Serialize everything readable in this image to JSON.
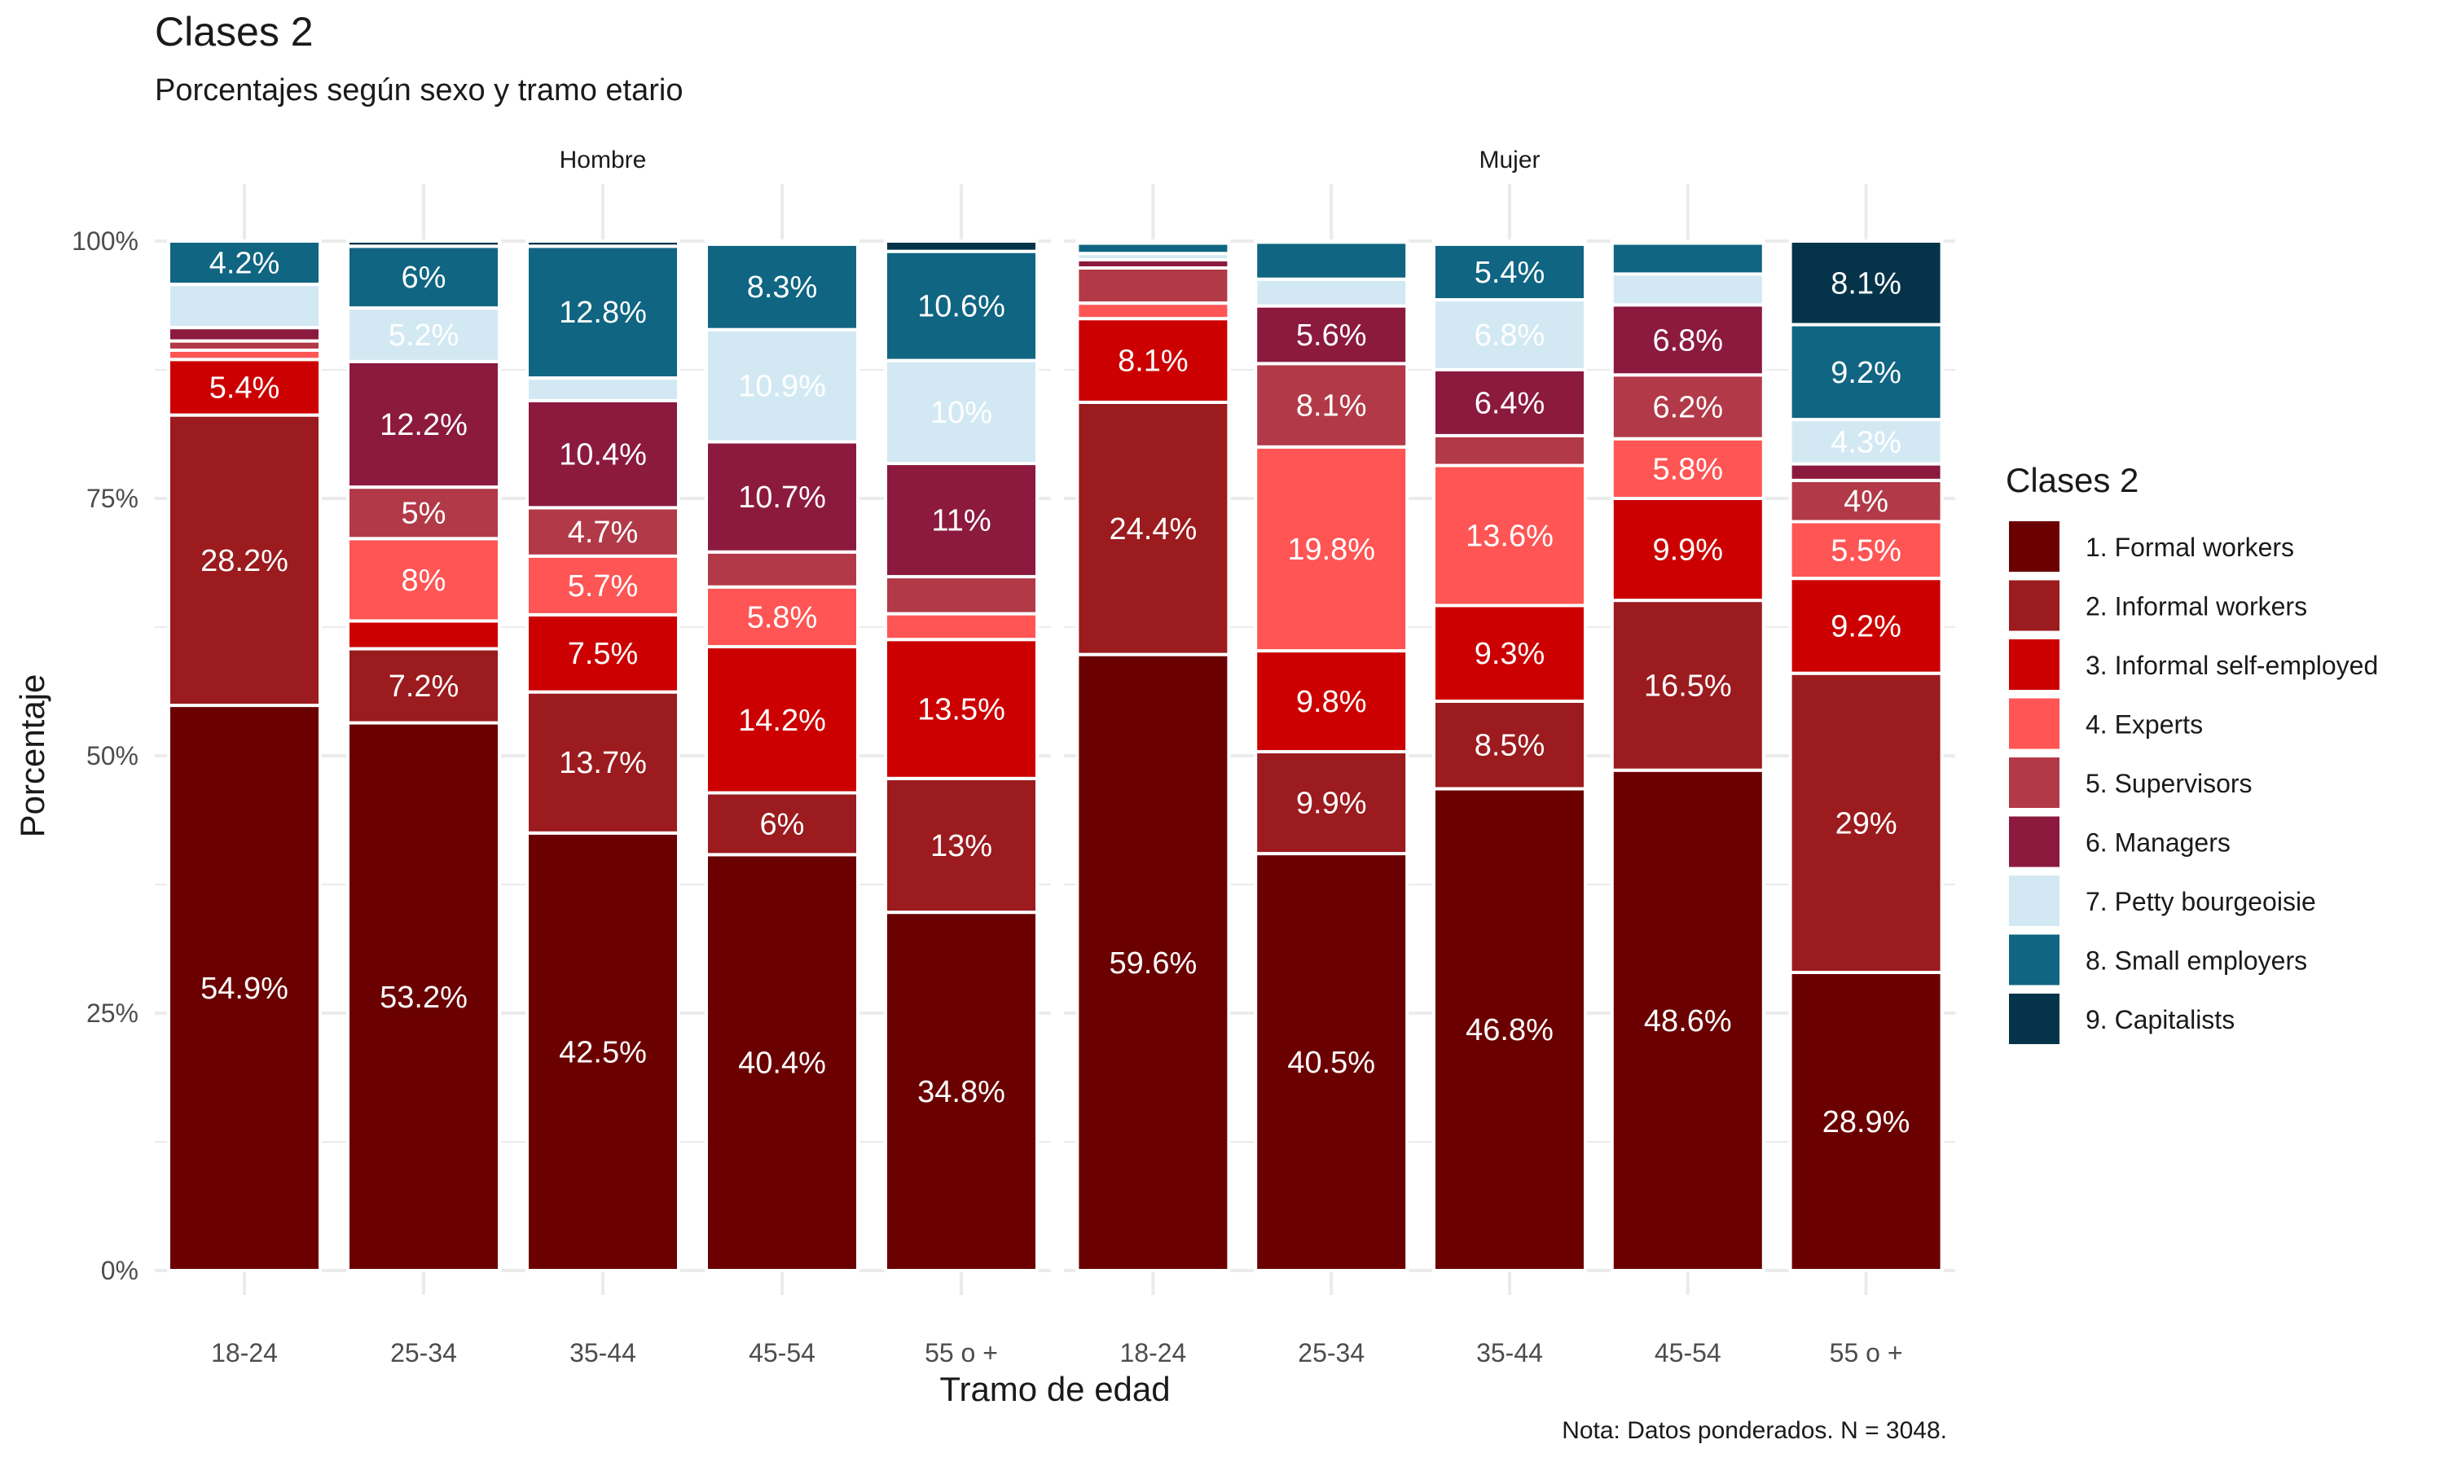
{
  "title": "Clases 2",
  "subtitle": "Porcentajes según sexo y tramo etario",
  "note": "Nota: Datos ponderados. N = 3048.",
  "colors": {
    "1. Formal workers": "#6B0000",
    "2. Informal workers": "#9B1B1E",
    "3. Informal self-employed": "#CC0000",
    "4. Experts": "#FF5555",
    "5. Supervisors": "#B23A48",
    "6. Managers": "#8B1A3E",
    "7. Petty bourgeoisie": "#D2E9F3",
    "8. Small employers": "#0F6582",
    "9. Capitalists": "#05344A"
  },
  "chart_data": {
    "type": "bar",
    "stacked": true,
    "xlabel": "Tramo de edad",
    "ylabel": "Porcentaje",
    "ylim": [
      0,
      100
    ],
    "yticks": [
      "0%",
      "25%",
      "50%",
      "75%",
      "100%"
    ],
    "facets": [
      "Hombre",
      "Mujer"
    ],
    "categories": [
      "18-24",
      "25-34",
      "35-44",
      "45-54",
      "55 o +"
    ],
    "legend": {
      "title": "Clases 2",
      "position": "right",
      "entries": [
        "1. Formal workers",
        "2. Informal workers",
        "3. Informal self-employed",
        "4. Experts",
        "5. Supervisors",
        "6. Managers",
        "7. Petty bourgeoisie",
        "8. Small employers",
        "9. Capitalists"
      ]
    },
    "series": [
      {
        "name": "1. Formal workers",
        "values": {
          "Hombre": [
            54.9,
            53.2,
            42.5,
            40.4,
            34.8
          ],
          "Mujer": [
            59.6,
            40.5,
            46.8,
            48.6,
            28.9
          ]
        }
      },
      {
        "name": "2. Informal workers",
        "values": {
          "Hombre": [
            28.2,
            7.2,
            13.7,
            6.0,
            13.0
          ],
          "Mujer": [
            24.4,
            9.9,
            8.5,
            16.5,
            29.0
          ]
        }
      },
      {
        "name": "3. Informal self-employed",
        "values": {
          "Hombre": [
            5.4,
            2.7,
            7.5,
            14.2,
            13.5
          ],
          "Mujer": [
            8.1,
            9.8,
            9.3,
            9.9,
            9.2
          ]
        }
      },
      {
        "name": "4. Experts",
        "values": {
          "Hombre": [
            0.9,
            8.0,
            5.7,
            5.8,
            2.5
          ],
          "Mujer": [
            1.5,
            19.8,
            13.6,
            5.8,
            5.5
          ]
        }
      },
      {
        "name": "5. Supervisors",
        "values": {
          "Hombre": [
            0.9,
            5.0,
            4.7,
            3.4,
            3.6
          ],
          "Mujer": [
            3.4,
            8.1,
            2.9,
            6.2,
            4.0
          ]
        }
      },
      {
        "name": "6. Managers",
        "values": {
          "Hombre": [
            1.3,
            12.2,
            10.4,
            10.7,
            11.0
          ],
          "Mujer": [
            0.8,
            5.6,
            6.4,
            6.8,
            1.6
          ]
        }
      },
      {
        "name": "7. Petty bourgeoisie",
        "values": {
          "Hombre": [
            4.2,
            5.2,
            2.2,
            10.9,
            10.0
          ],
          "Mujer": [
            0.6,
            2.6,
            6.8,
            3.0,
            4.3
          ]
        }
      },
      {
        "name": "8. Small employers",
        "values": {
          "Hombre": [
            4.2,
            6.0,
            12.8,
            8.3,
            10.6
          ],
          "Mujer": [
            1.0,
            3.6,
            5.4,
            3.0,
            9.2
          ]
        }
      },
      {
        "name": "9. Capitalists",
        "values": {
          "Hombre": [
            0.0,
            0.5,
            0.5,
            0.3,
            1.0
          ],
          "Mujer": [
            0.2,
            0.1,
            0.3,
            0.2,
            8.1
          ]
        }
      }
    ],
    "labels": {
      "Hombre": [
        [
          "54.9%",
          "53.2%",
          "42.5%",
          "40.4%",
          "34.8%"
        ],
        [
          "28.2%",
          "7.2%",
          "13.7%",
          "6%",
          "13%"
        ],
        [
          "5.4%",
          "",
          "7.5%",
          "14.2%",
          "13.5%"
        ],
        [
          "",
          "8%",
          "5.7%",
          "5.8%",
          ""
        ],
        [
          "",
          "5%",
          "4.7%",
          "",
          ""
        ],
        [
          "",
          "12.2%",
          "10.4%",
          "10.7%",
          "11%"
        ],
        [
          "",
          "5.2%",
          "",
          "10.9%",
          "10%"
        ],
        [
          "4.2%",
          "6%",
          "12.8%",
          "8.3%",
          "10.6%"
        ],
        [
          "",
          "",
          "",
          "",
          ""
        ]
      ],
      "Mujer": [
        [
          "59.6%",
          "40.5%",
          "46.8%",
          "48.6%",
          "28.9%"
        ],
        [
          "24.4%",
          "9.9%",
          "8.5%",
          "16.5%",
          "29%"
        ],
        [
          "8.1%",
          "9.8%",
          "9.3%",
          "9.9%",
          "9.2%"
        ],
        [
          "",
          "19.8%",
          "13.6%",
          "5.8%",
          "5.5%"
        ],
        [
          "",
          "8.1%",
          "",
          "6.2%",
          "4%"
        ],
        [
          "",
          "5.6%",
          "6.4%",
          "6.8%",
          ""
        ],
        [
          "",
          "",
          "6.8%",
          "",
          "4.3%"
        ],
        [
          "",
          "",
          "5.4%",
          "",
          "9.2%"
        ],
        [
          "",
          "",
          "",
          "",
          "8.1%"
        ]
      ]
    }
  }
}
